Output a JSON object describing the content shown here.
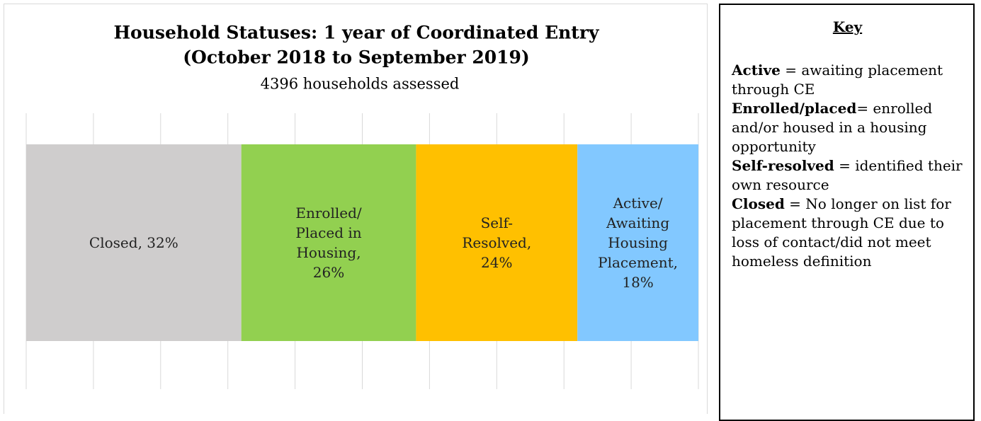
{
  "chart_data": {
    "type": "stacked_bar_horizontal",
    "title": [
      "Household Statuses: 1 year of Coordinated Entry",
      "(October 2018 to September 2019)"
    ],
    "subtitle": "4396 households assessed",
    "series": [
      {
        "color": "#cfcdcd",
        "values": [
          32
        ],
        "value_labels": [
          "Closed, 32%"
        ]
      },
      {
        "color": "#92d050",
        "values": [
          26
        ],
        "value_labels": [
          "Enrolled/ Placed in Housing, 26%"
        ]
      },
      {
        "color": "#ffc000",
        "values": [
          24
        ],
        "value_labels": [
          "Self-Resolved, 24%"
        ]
      },
      {
        "color": "#82c8ff",
        "values": [
          18
        ],
        "value_labels": [
          "Active/ Awaiting Housing Placement, 18%"
        ]
      }
    ],
    "xlim": [
      0,
      100
    ],
    "xticks": [
      0,
      10,
      20,
      30,
      40,
      50,
      60,
      70,
      80,
      90,
      100
    ],
    "grid": true
  },
  "key": {
    "title": "Key",
    "entries": [
      {
        "term": "Active",
        "definition": " = awaiting placement through CE"
      },
      {
        "term": "Enrolled/placed",
        "definition": "= enrolled and/or housed in a housing opportunity"
      },
      {
        "term": "Self-resolved",
        "definition": " = identified their own resource"
      },
      {
        "term": "Closed",
        "definition": " = No longer on list for placement through CE due to loss of contact/did not meet homeless definition"
      }
    ]
  }
}
